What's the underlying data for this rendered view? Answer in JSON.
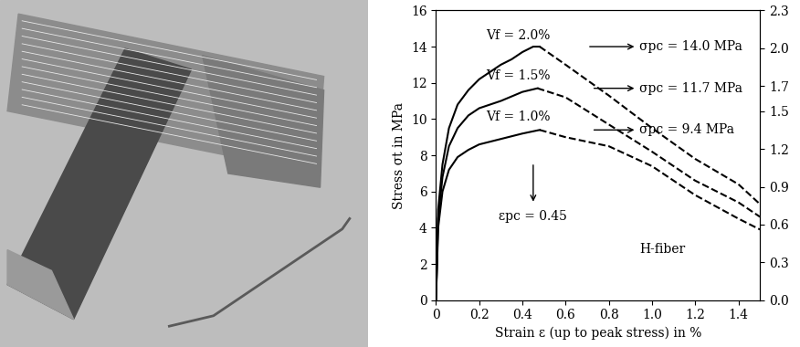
{
  "chart_data": {
    "type": "line",
    "x_label": "Strain ε (up to peak stress) in %",
    "y_label": "Stress σt in MPa",
    "xlim": [
      0,
      1.5
    ],
    "xticks": [
      0,
      0.2,
      0.4,
      0.6,
      0.8,
      1.0,
      1.2,
      1.4
    ],
    "ylim": [
      0,
      16
    ],
    "yticks": [
      0,
      2,
      4,
      6,
      8,
      10,
      12,
      14,
      16
    ],
    "y2lim": [
      0.0,
      2.3
    ],
    "y2ticks": [
      0.0,
      0.3,
      0.6,
      0.9,
      1.2,
      1.5,
      1.7,
      2.0,
      2.3
    ],
    "grid": false,
    "series": [
      {
        "color": "#000000",
        "line_style": "solid",
        "x": [
          0,
          0.01,
          0.03,
          0.06,
          0.1,
          0.15,
          0.2,
          0.25,
          0.3,
          0.35,
          0.4,
          0.45,
          0.48
        ],
        "values": [
          0,
          5.0,
          7.5,
          9.5,
          10.8,
          11.6,
          12.2,
          12.6,
          13.0,
          13.3,
          13.7,
          14.0,
          14.0
        ]
      },
      {
        "color": "#000000",
        "line_style": "dashed",
        "x": [
          0.48,
          0.6,
          0.8,
          1.0,
          1.2,
          1.4,
          1.5
        ],
        "values": [
          14.0,
          13.0,
          11.3,
          9.5,
          7.8,
          6.4,
          5.3
        ]
      },
      {
        "color": "#000000",
        "line_style": "solid",
        "x": [
          0,
          0.01,
          0.03,
          0.06,
          0.1,
          0.15,
          0.2,
          0.3,
          0.4,
          0.47
        ],
        "values": [
          0,
          4.5,
          6.8,
          8.5,
          9.5,
          10.2,
          10.6,
          11.0,
          11.5,
          11.7
        ]
      },
      {
        "color": "#000000",
        "line_style": "dashed",
        "x": [
          0.47,
          0.6,
          0.8,
          1.0,
          1.2,
          1.4,
          1.5
        ],
        "values": [
          11.7,
          11.2,
          9.7,
          8.2,
          6.6,
          5.4,
          4.6
        ]
      },
      {
        "color": "#000000",
        "line_style": "solid",
        "x": [
          0,
          0.01,
          0.03,
          0.06,
          0.1,
          0.15,
          0.2,
          0.3,
          0.4,
          0.48
        ],
        "values": [
          0,
          4.0,
          6.0,
          7.2,
          7.9,
          8.3,
          8.6,
          8.9,
          9.2,
          9.4
        ]
      },
      {
        "color": "#000000",
        "line_style": "dashed",
        "x": [
          0.48,
          0.6,
          0.8,
          1.0,
          1.2,
          1.4,
          1.5
        ],
        "values": [
          9.4,
          9.0,
          8.5,
          7.4,
          5.8,
          4.5,
          3.9
        ]
      }
    ],
    "annotations": [
      {
        "text": "Vf = 2.0%",
        "x": 0.38,
        "y": 14.6
      },
      {
        "text": "Vf = 1.5%",
        "x": 0.38,
        "y": 12.4
      },
      {
        "text": "Vf = 1.0%",
        "x": 0.38,
        "y": 10.1
      },
      {
        "text": "σpc = 14.0 MPa",
        "x": 0.94,
        "y": 14.0,
        "arrow_from": [
          0.7,
          14.0
        ]
      },
      {
        "text": "σpc = 11.7 MPa",
        "x": 0.94,
        "y": 11.7,
        "arrow_from": [
          0.72,
          11.7
        ]
      },
      {
        "text": "σpc = 9.4 MPa",
        "x": 0.94,
        "y": 9.4,
        "arrow_from": [
          0.72,
          9.4
        ]
      },
      {
        "text": "εpc = 0.45",
        "x": 0.45,
        "y": 5.0,
        "arrow_from": [
          0.45,
          7.6
        ]
      },
      {
        "text": "H-fiber",
        "x": 1.05,
        "y": 2.8
      }
    ]
  }
}
